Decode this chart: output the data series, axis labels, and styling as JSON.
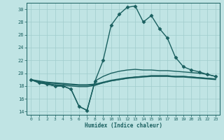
{
  "xlabel": "Humidex (Indice chaleur)",
  "background_color": "#c0e4e4",
  "grid_color": "#a0cccc",
  "line_color": "#1a6060",
  "xlim": [
    -0.5,
    23.5
  ],
  "ylim": [
    13.5,
    31.0
  ],
  "xticks": [
    0,
    1,
    2,
    3,
    4,
    5,
    6,
    7,
    8,
    9,
    10,
    11,
    12,
    13,
    14,
    15,
    16,
    17,
    18,
    19,
    20,
    21,
    22,
    23
  ],
  "yticks": [
    14,
    16,
    18,
    20,
    22,
    24,
    26,
    28,
    30
  ],
  "series": [
    {
      "x": [
        0,
        1,
        2,
        3,
        4,
        5,
        6,
        7,
        8,
        9,
        10,
        11,
        12,
        13,
        14,
        15,
        16,
        17,
        18,
        19,
        20,
        21,
        22,
        23
      ],
      "y": [
        19.0,
        18.5,
        18.3,
        18.0,
        18.0,
        17.5,
        14.8,
        14.2,
        18.8,
        22.0,
        27.5,
        29.2,
        30.3,
        30.5,
        28.0,
        29.0,
        27.0,
        25.5,
        22.5,
        21.0,
        20.5,
        20.2,
        19.8,
        19.5
      ],
      "marker": "D",
      "markersize": 2.5,
      "linewidth": 1.0,
      "has_marker": true
    },
    {
      "x": [
        0,
        1,
        2,
        3,
        4,
        5,
        6,
        7,
        8,
        9,
        10,
        11,
        12,
        13,
        14,
        15,
        16,
        17,
        18,
        19,
        20,
        21,
        22,
        23
      ],
      "y": [
        19.0,
        18.5,
        18.3,
        18.0,
        18.0,
        17.5,
        14.8,
        14.2,
        18.8,
        19.5,
        20.0,
        20.3,
        20.5,
        20.6,
        20.5,
        20.5,
        20.4,
        20.4,
        20.3,
        20.2,
        20.1,
        20.0,
        19.8,
        19.5
      ],
      "marker": null,
      "markersize": 0,
      "linewidth": 1.0,
      "has_marker": false
    },
    {
      "x": [
        0,
        1,
        2,
        3,
        4,
        5,
        6,
        7,
        8,
        9,
        10,
        11,
        12,
        13,
        14,
        15,
        16,
        17,
        18,
        19,
        20,
        21,
        22,
        23
      ],
      "y": [
        19.0,
        18.6,
        18.4,
        18.2,
        18.1,
        18.0,
        17.9,
        17.9,
        18.1,
        18.5,
        18.8,
        19.0,
        19.2,
        19.4,
        19.5,
        19.6,
        19.6,
        19.6,
        19.5,
        19.5,
        19.4,
        19.3,
        19.2,
        19.1
      ],
      "marker": null,
      "markersize": 0,
      "linewidth": 1.0,
      "has_marker": false
    },
    {
      "x": [
        0,
        1,
        2,
        3,
        4,
        5,
        6,
        7,
        8,
        9,
        10,
        11,
        12,
        13,
        14,
        15,
        16,
        17,
        18,
        19,
        20,
        21,
        22,
        23
      ],
      "y": [
        19.0,
        18.7,
        18.5,
        18.4,
        18.3,
        18.2,
        18.1,
        18.1,
        18.2,
        18.5,
        18.8,
        19.0,
        19.2,
        19.3,
        19.4,
        19.5,
        19.5,
        19.5,
        19.4,
        19.4,
        19.3,
        19.2,
        19.1,
        19.0
      ],
      "marker": null,
      "markersize": 0,
      "linewidth": 1.0,
      "has_marker": false
    },
    {
      "x": [
        0,
        1,
        2,
        3,
        4,
        5,
        6,
        7,
        8,
        9,
        10,
        11,
        12,
        13,
        14,
        15,
        16,
        17,
        18,
        19,
        20,
        21,
        22,
        23
      ],
      "y": [
        19.0,
        18.8,
        18.6,
        18.5,
        18.4,
        18.3,
        18.2,
        18.2,
        18.3,
        18.6,
        18.9,
        19.1,
        19.3,
        19.4,
        19.5,
        19.6,
        19.6,
        19.6,
        19.5,
        19.5,
        19.4,
        19.3,
        19.2,
        19.1
      ],
      "marker": null,
      "markersize": 0,
      "linewidth": 1.0,
      "has_marker": false
    }
  ]
}
